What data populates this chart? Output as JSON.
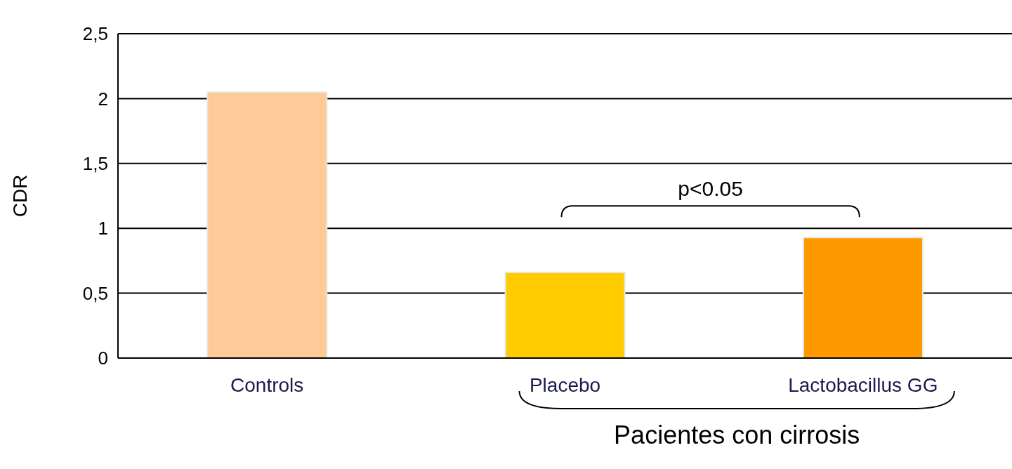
{
  "chart_data": {
    "type": "bar",
    "categories": [
      "Controls",
      "Placebo",
      "Lactobacillus GG"
    ],
    "values": [
      2.05,
      0.66,
      0.93
    ],
    "colors": [
      "#fdca98",
      "#fecc00",
      "#fe9a00"
    ],
    "ylabel": "CDR",
    "xlabel": "Pacientes con cirrosis",
    "ylim": [
      0,
      2.5
    ],
    "yticks": [
      0,
      {
        "value": 0.5,
        "label": "0,5"
      },
      1,
      {
        "value": 1.5,
        "label": "1,5"
      },
      2,
      {
        "value": 2.5,
        "label": "2,5"
      }
    ],
    "grid": "y",
    "annotations": [
      "p<0.05"
    ]
  }
}
